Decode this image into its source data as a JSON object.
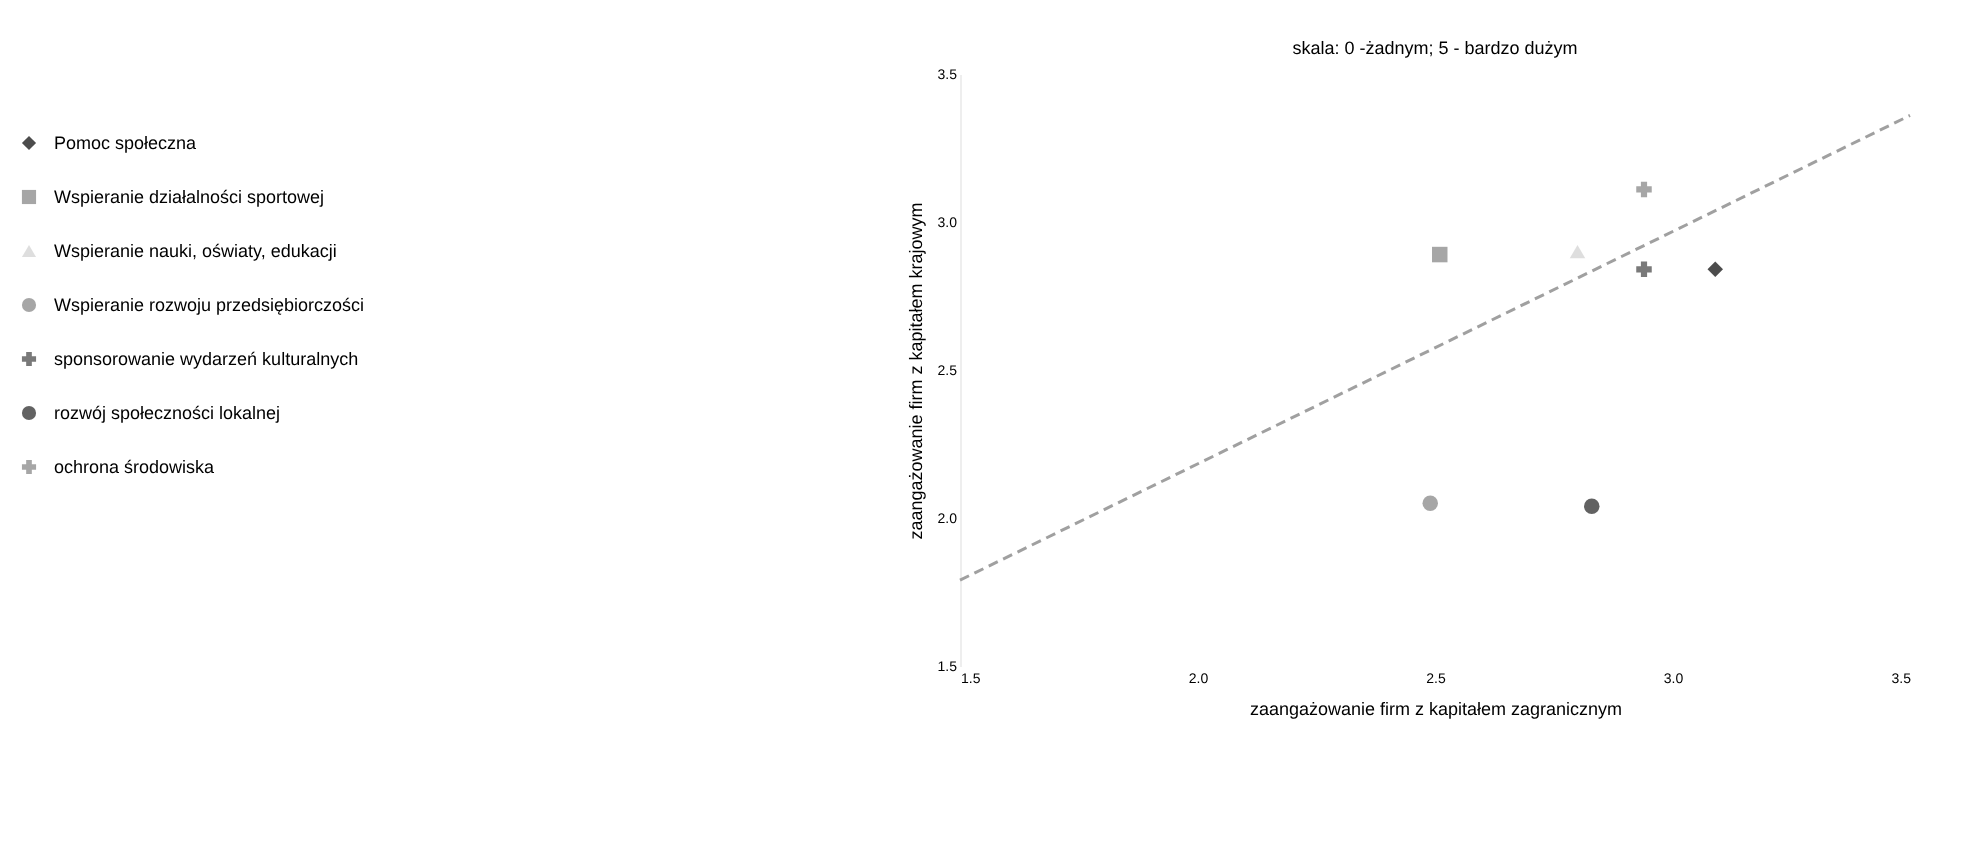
{
  "chart_data": {
    "type": "scatter",
    "title": "skala: 0 -żadnym; 5 - bardzo dużym",
    "xlabel": "zaangażowanie firm z kapitałem zagranicznym",
    "ylabel": "zaangażowanie firm z kapitałem krajowym",
    "xlim": [
      1.5,
      3.5
    ],
    "ylim": [
      1.5,
      3.5
    ],
    "xticks": [
      {
        "value": 1.5,
        "label": "1.5"
      },
      {
        "value": 2,
        "label": "2.0"
      },
      {
        "value": 2.5,
        "label": "2.5"
      },
      {
        "value": 3,
        "label": "3.0"
      },
      {
        "value": 3.5,
        "label": "3.5"
      }
    ],
    "yticks": [
      {
        "value": 1.5,
        "label": "1.5"
      },
      {
        "value": 2,
        "label": "2.0"
      },
      {
        "value": 2.5,
        "label": "2.5"
      },
      {
        "value": 3,
        "label": "3.0"
      },
      {
        "value": 3.5,
        "label": "3.5"
      }
    ],
    "grid": false,
    "legend": "left",
    "series": [
      {
        "name": "Pomoc społeczna",
        "color": "#000000",
        "marker": "diamond",
        "x": [
          3.09
        ],
        "values": [
          2.84
        ]
      },
      {
        "name": "Wspieranie działalności sportowej",
        "color": "#808080",
        "marker": "square",
        "x": [
          2.51
        ],
        "values": [
          2.89
        ]
      },
      {
        "name": "Wspieranie nauki, oświaty, edukacji",
        "color": "#d0d0d0",
        "marker": "triangle",
        "x": [
          2.8
        ],
        "values": [
          2.9
        ]
      },
      {
        "name": "Wspieranie rozwoju przedsiębiorczości",
        "color": "#808080",
        "marker": "circle",
        "x": [
          2.49
        ],
        "values": [
          2.05
        ]
      },
      {
        "name": "sponsorowanie wydarzeń kulturalnych",
        "color": "#404040",
        "marker": "cross",
        "x": [
          2.94
        ],
        "values": [
          2.84
        ]
      },
      {
        "name": "rozwój społeczności lokalnej",
        "color": "#202020",
        "marker": "circle",
        "x": [
          2.83
        ],
        "values": [
          2.04
        ]
      },
      {
        "name": "ochrona środowiska",
        "color": "#808080",
        "marker": "cross",
        "x": [
          2.94
        ],
        "values": [
          3.11
        ]
      },
      {
        "type": "line",
        "color": "#a0a0a0",
        "line_style": "dashed",
        "x": [
          1.5,
          3.5
        ],
        "values": [
          1.79,
          3.36
        ]
      }
    ]
  }
}
